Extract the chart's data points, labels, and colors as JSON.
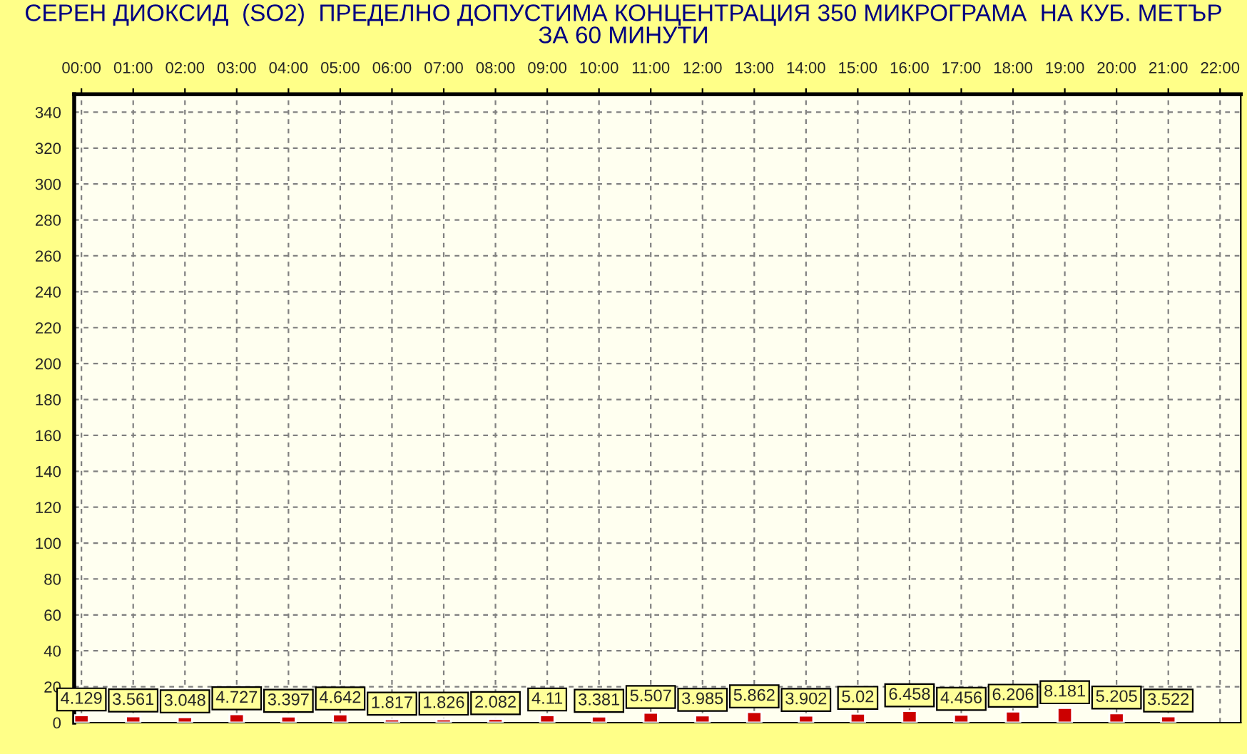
{
  "chart_data": {
    "type": "bar",
    "title": "СЕРЕН ДИОКСИД  (SO2)  ПРЕДЕЛНО ДОПУСТИМА КОНЦЕНТРАЦИЯ 350 МИКРОГРАМА  НА КУБ. МЕТЪР\nЗА 60 МИНУТИ",
    "x": [
      0,
      1,
      2,
      3,
      4,
      5,
      6,
      7,
      8,
      9,
      10,
      11,
      12,
      13,
      14,
      15,
      16,
      17,
      18,
      19,
      20,
      21
    ],
    "values": [
      4.129,
      3.561,
      3.048,
      4.727,
      3.397,
      4.642,
      1.817,
      1.826,
      2.082,
      4.11,
      3.381,
      5.507,
      3.985,
      5.862,
      3.902,
      5.02,
      6.458,
      4.456,
      6.206,
      8.181,
      5.205,
      3.522
    ],
    "color": "#cc0000",
    "data_labels": true,
    "xlim": [
      -0.14,
      22.4
    ],
    "xticks": [
      {
        "value": 0,
        "label": "00:00"
      },
      {
        "value": 1,
        "label": "01:00"
      },
      {
        "value": 2,
        "label": "02:00"
      },
      {
        "value": 3,
        "label": "03:00"
      },
      {
        "value": 4,
        "label": "04:00"
      },
      {
        "value": 5,
        "label": "05:00"
      },
      {
        "value": 6,
        "label": "06:00"
      },
      {
        "value": 7,
        "label": "07:00"
      },
      {
        "value": 8,
        "label": "08:00"
      },
      {
        "value": 9,
        "label": "09:00"
      },
      {
        "value": 10,
        "label": "10:00"
      },
      {
        "value": 11,
        "label": "11:00"
      },
      {
        "value": 12,
        "label": "12:00"
      },
      {
        "value": 13,
        "label": "13:00"
      },
      {
        "value": 14,
        "label": "14:00"
      },
      {
        "value": 15,
        "label": "15:00"
      },
      {
        "value": 16,
        "label": "16:00"
      },
      {
        "value": 17,
        "label": "17:00"
      },
      {
        "value": 18,
        "label": "18:00"
      },
      {
        "value": 19,
        "label": "19:00"
      },
      {
        "value": 20,
        "label": "20:00"
      },
      {
        "value": 21,
        "label": "21:00"
      },
      {
        "value": 22,
        "label": "22:00"
      }
    ],
    "ylim": [
      0,
      350
    ],
    "yticks": [
      0,
      20,
      40,
      60,
      80,
      100,
      120,
      140,
      160,
      180,
      200,
      220,
      240,
      260,
      280,
      300,
      320,
      340
    ],
    "grid": true
  }
}
